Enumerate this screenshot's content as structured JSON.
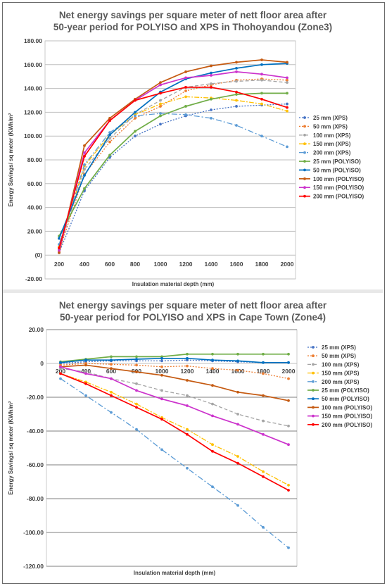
{
  "chart_data": [
    {
      "type": "line",
      "title_lines": [
        "Net energy savings per square meter of nett floor area after",
        "50-year period for POLYISO and XPS in Thohoyandou (Zone3)"
      ],
      "xlabel": "Insulation material depth (mm)",
      "ylabel": "Energy Savings/ sq meter (KWh/m²",
      "x": [
        200,
        400,
        600,
        800,
        1000,
        1200,
        1400,
        1600,
        1800,
        2000
      ],
      "ylim": [
        -20,
        180
      ],
      "yticks": [
        "-20.00",
        "(0)",
        "20.00",
        "40.00",
        "60.00",
        "80.00",
        "100.00",
        "120.00",
        "140.00",
        "160.00",
        "180.00"
      ],
      "grid": true,
      "legend_position": "right",
      "series": [
        {
          "name": "25 mm (XPS)",
          "color": "#4472c4",
          "dash": "2,2",
          "values": [
            2,
            54,
            82,
            100,
            110,
            117,
            122,
            125,
            126,
            127
          ]
        },
        {
          "name": "50 mm (XPS)",
          "color": "#ed7d31",
          "dash": "2,2",
          "values": [
            3,
            68,
            95,
            115,
            125,
            138,
            143,
            147,
            148,
            147
          ]
        },
        {
          "name": "100 mm (XPS)",
          "color": "#a5a5a5",
          "dash": "5,3",
          "values": [
            5,
            72,
            98,
            118,
            130,
            141,
            144,
            146,
            147,
            145
          ]
        },
        {
          "name": "150 mm (XPS)",
          "color": "#ffc000",
          "dash": "7,2,2,2",
          "values": [
            7,
            75,
            101,
            118,
            127,
            133,
            132,
            130,
            127,
            121
          ]
        },
        {
          "name": "200 mm (XPS)",
          "color": "#5b9bd5",
          "dash": "8,3,2,3",
          "values": [
            9,
            76,
            103,
            117,
            119,
            118,
            115,
            109,
            100,
            91
          ]
        },
        {
          "name": "25 mm (POLYISO)",
          "color": "#70ad47",
          "dash": "",
          "values": [
            16,
            56,
            84,
            104,
            117,
            125,
            131,
            135,
            136,
            136
          ]
        },
        {
          "name": "50 mm (POLYISO)",
          "color": "#0070c0",
          "dash": "",
          "values": [
            14,
            67,
            101,
            120,
            137,
            148,
            153,
            157,
            160,
            161
          ]
        },
        {
          "name": "100 mm (POLYISO)",
          "color": "#c55a11",
          "dash": "",
          "values": [
            2,
            92,
            115,
            131,
            145,
            154,
            159,
            162,
            164,
            162
          ]
        },
        {
          "name": "150 mm (POLYISO)",
          "color": "#cc33cc",
          "dash": "",
          "values": [
            4,
            86,
            113,
            130,
            143,
            149,
            151,
            154,
            152,
            149
          ]
        },
        {
          "name": "200 mm (POLYISO)",
          "color": "#ff0000",
          "dash": "",
          "values": [
            6,
            83,
            113,
            130,
            136,
            141,
            141,
            137,
            131,
            124
          ]
        }
      ]
    },
    {
      "type": "line",
      "title_lines": [
        "Net energy savings per square meter of nett floor area after",
        "50-year period for POLYISO and XPS in Cape Town (Zone4)"
      ],
      "xlabel": "Insulation material depth (mm)",
      "ylabel": "Energy Savings/ sq meter (KWh/m²",
      "x": [
        200,
        400,
        600,
        800,
        1000,
        1200,
        1400,
        1600,
        1800,
        2000
      ],
      "ylim": [
        -120,
        20
      ],
      "yticks": [
        "-120.00",
        "-100.00",
        "-80.00",
        "-60.00",
        "-40.00",
        "-20.00",
        "0",
        "20.00"
      ],
      "grid": true,
      "legend_position": "right",
      "series": [
        {
          "name": "25 mm (XPS)",
          "color": "#4472c4",
          "dash": "2,2",
          "values": [
            0,
            1,
            1.5,
            1.5,
            1.5,
            2,
            1.5,
            1,
            0.5,
            0.5
          ]
        },
        {
          "name": "50 mm (XPS)",
          "color": "#ed7d31",
          "dash": "2,2",
          "values": [
            -1,
            0,
            -0.5,
            -1,
            -2,
            -1.5,
            -3,
            -4,
            -6,
            -9
          ]
        },
        {
          "name": "100 mm (XPS)",
          "color": "#a5a5a5",
          "dash": "5,3",
          "values": [
            -3,
            -5,
            -9,
            -12,
            -16,
            -19,
            -24,
            -30,
            -34,
            -37
          ]
        },
        {
          "name": "150 mm (XPS)",
          "color": "#ffc000",
          "dash": "7,2,2,2",
          "values": [
            -6,
            -11,
            -17,
            -24,
            -32,
            -39,
            -48,
            -55,
            -64,
            -72
          ]
        },
        {
          "name": "200 mm (XPS)",
          "color": "#5b9bd5",
          "dash": "8,3,2,3",
          "values": [
            -9,
            -19,
            -29,
            -39,
            -51,
            -62,
            -73,
            -84,
            -97,
            -109
          ]
        },
        {
          "name": "25 mm (POLYISO)",
          "color": "#70ad47",
          "dash": "",
          "values": [
            1,
            2.5,
            4,
            4,
            4,
            5.5,
            5.5,
            5.5,
            5.5,
            5.5
          ]
        },
        {
          "name": "50 mm (POLYISO)",
          "color": "#0070c0",
          "dash": "",
          "values": [
            0.5,
            2,
            2,
            2.5,
            3,
            3,
            2,
            1.5,
            0.5,
            0.5
          ]
        },
        {
          "name": "100 mm (POLYISO)",
          "color": "#c55a11",
          "dash": "",
          "values": [
            -2,
            -1,
            -3,
            -5,
            -7,
            -10,
            -13,
            -17,
            -19,
            -22
          ]
        },
        {
          "name": "150 mm (POLYISO)",
          "color": "#cc33cc",
          "dash": "",
          "values": [
            -2,
            -6,
            -9,
            -16,
            -21,
            -25,
            -31,
            -36,
            -42,
            -48
          ]
        },
        {
          "name": "200 mm (POLYISO)",
          "color": "#ff0000",
          "dash": "",
          "values": [
            -6,
            -12,
            -19,
            -26,
            -33,
            -42,
            -52,
            -59,
            -67,
            -75
          ]
        }
      ]
    }
  ]
}
